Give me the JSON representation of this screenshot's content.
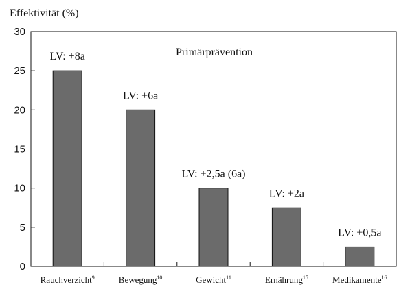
{
  "chart_data": {
    "type": "bar",
    "title": "Primärprävention",
    "ylabel": "Effektivität (%)",
    "xlabel": "",
    "ylim": [
      0,
      30
    ],
    "yticks": [
      0,
      5,
      10,
      15,
      20,
      25,
      30
    ],
    "grid": false,
    "categories": [
      {
        "label": "Rauchverzicht",
        "sup": "9"
      },
      {
        "label": "Bewegung",
        "sup": "10"
      },
      {
        "label": "Gewicht",
        "sup": "11"
      },
      {
        "label": "Ernährung",
        "sup": "15"
      },
      {
        "label": "Medikamente",
        "sup": "16"
      }
    ],
    "values": [
      25,
      20,
      10,
      7.5,
      2.5
    ],
    "annotations": [
      "LV: +8a",
      "LV: +6a",
      "LV: +2,5a (6a)",
      "LV: +2a",
      "LV: +0,5a"
    ],
    "colors": {
      "bar": "#6b6b6b",
      "bar_stroke": "#111111",
      "axis": "#111111"
    }
  }
}
